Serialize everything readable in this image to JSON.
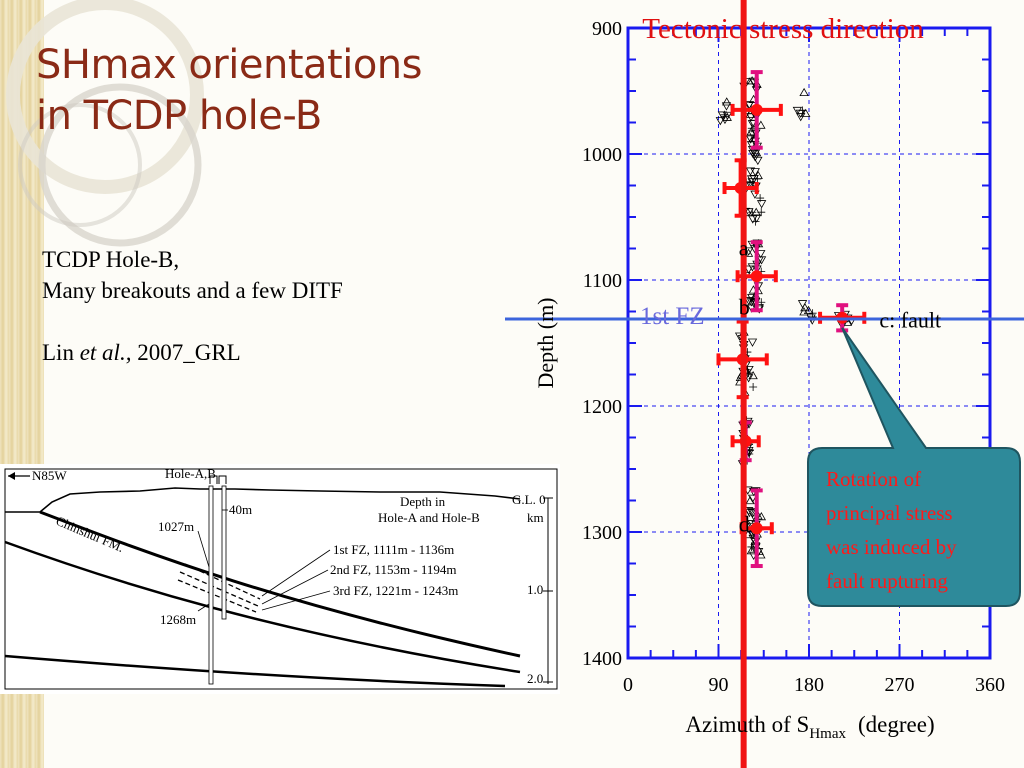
{
  "slide": {
    "title_line1": "SHmax orientations",
    "title_line2": "in TCDP hole-B",
    "note_line1": "TCDP Hole-B,",
    "note_line2": "Many breakouts and a few DITF",
    "ref_author": "Lin ",
    "ref_etal": "et al.,",
    "ref_rest": " 2007_GRL"
  },
  "cross_section": {
    "direction_label": "N85W",
    "hole_label": "Hole-A,B",
    "offset_label": "40m",
    "formation_label": "Chinshui FM.",
    "depth_1027": "1027m",
    "depth_1268": "1268m",
    "depth_header_1": "Depth in",
    "depth_header_2": "Hole-A and Hole-B",
    "fz1": "1st FZ,  1111m - 1136m",
    "fz2": "2nd FZ,  1153m - 1194m",
    "fz3": "3rd FZ,  1221m - 1243m",
    "gl_label": "G.L. 0",
    "km_label": "km",
    "scale_1": "1.0",
    "scale_2": "2.0"
  },
  "chart_data": {
    "type": "scatter",
    "title": "Tectonic stress direction",
    "xlabel_main": "Azimuth of S",
    "xlabel_sub": "Hmax",
    "xlabel_unit": "(degree)",
    "ylabel": "Depth (m)",
    "xlim": [
      0,
      360
    ],
    "ylim": [
      1400,
      900
    ],
    "y_inverted": true,
    "x_ticks": [
      0,
      90,
      180,
      270,
      360
    ],
    "y_ticks": [
      900,
      1000,
      1100,
      1200,
      1300,
      1400
    ],
    "grid": "dashed",
    "tectonic_direction_azimuth": 115,
    "fault_zone_depth": 1131,
    "fault_zone_label": "1st FZ",
    "segment_labels": [
      {
        "text": "a",
        "x": 140,
        "y": 1075
      },
      {
        "text": "b",
        "x": 140,
        "y": 1122
      },
      {
        "text": "c: fault",
        "x": 250,
        "y": 1132
      },
      {
        "text": "d",
        "x": 140,
        "y": 1294
      }
    ],
    "mean_orientations": [
      {
        "depth": 965,
        "azimuth": 128,
        "azi_err": 24,
        "depth_err": 30,
        "color": "#ff1111",
        "depth_color": "#e0117f"
      },
      {
        "depth": 1027,
        "azimuth": 112,
        "azi_err": 16,
        "depth_err": 22,
        "color": "#ff1111",
        "depth_color": "#ff1111"
      },
      {
        "depth": 1097,
        "azimuth": 128,
        "azi_err": 19,
        "depth_err": 27,
        "color": "#ff1111",
        "depth_color": "#e0117f"
      },
      {
        "depth": 1130,
        "azimuth": 213,
        "azi_err": 22,
        "depth_err": 10,
        "color": "#ff1111",
        "depth_color": "#e0117f"
      },
      {
        "depth": 1163,
        "azimuth": 114,
        "azi_err": 24,
        "depth_err": 30,
        "color": "#ff1111",
        "depth_color": "#ff1111"
      },
      {
        "depth": 1228,
        "azimuth": 117,
        "azi_err": 13,
        "depth_err": 15,
        "color": "#ff1111",
        "depth_color": "#e0117f"
      },
      {
        "depth": 1297,
        "azimuth": 128,
        "azi_err": 15,
        "depth_err": 30,
        "color": "#ff1111",
        "depth_color": "#e0117f"
      }
    ],
    "observation_clusters": [
      {
        "d0": 942,
        "d1": 1055,
        "c": 124,
        "s": 11,
        "n": 58
      },
      {
        "d0": 955,
        "d1": 975,
        "c": 97,
        "s": 8,
        "n": 8
      },
      {
        "d0": 950,
        "d1": 975,
        "c": 172,
        "s": 12,
        "n": 6
      },
      {
        "d0": 1070,
        "d1": 1125,
        "c": 126,
        "s": 11,
        "n": 34
      },
      {
        "d0": 1112,
        "d1": 1135,
        "c": 177,
        "s": 14,
        "n": 7
      },
      {
        "d0": 1125,
        "d1": 1135,
        "c": 215,
        "s": 11,
        "n": 8
      },
      {
        "d0": 1140,
        "d1": 1190,
        "c": 118,
        "s": 13,
        "n": 24
      },
      {
        "d0": 1210,
        "d1": 1248,
        "c": 118,
        "s": 6,
        "n": 18
      },
      {
        "d0": 1265,
        "d1": 1320,
        "c": 126,
        "s": 8,
        "n": 34
      }
    ],
    "callout": {
      "lines": [
        "Rotation of",
        "principal stress",
        "was induced by",
        "fault rupturing"
      ],
      "fill": "#2e8a9a",
      "text_color": "#ff1a1a"
    },
    "colors": {
      "axes": "#1a1af0",
      "tectonic_line": "#f01414",
      "fault_line": "#3c64dc",
      "fault_label": "#6a6adc",
      "title_color": "#e01010"
    }
  }
}
